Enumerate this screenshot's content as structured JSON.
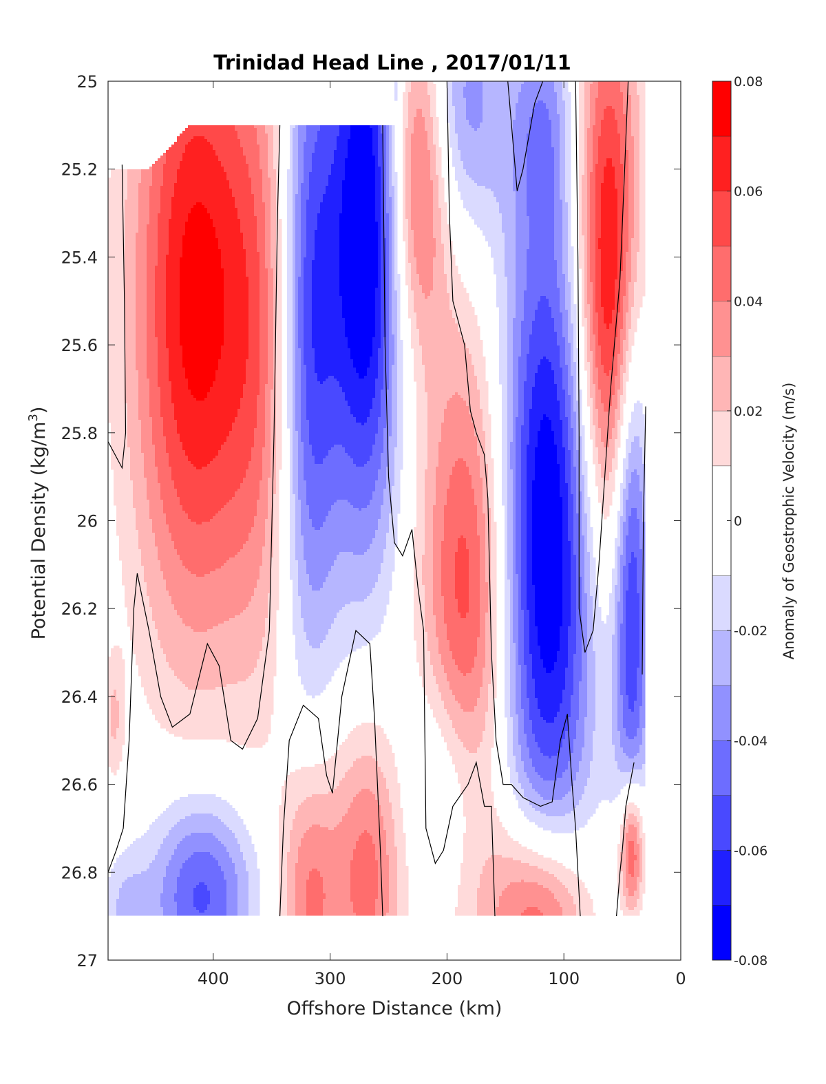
{
  "chart_data": {
    "type": "heatmap",
    "title": "Trinidad Head Line , 2017/01/11",
    "xlabel": "Offshore Distance (km)",
    "ylabel": "Potential Density (kg/m",
    "ylabel_sup": "3",
    "ylabel_end": ")",
    "xlim": [
      490,
      0
    ],
    "ylim": [
      25,
      27
    ],
    "y_reversed": true,
    "x_ticks": [
      {
        "value": 400,
        "label": "400"
      },
      {
        "value": 300,
        "label": "300"
      },
      {
        "value": 200,
        "label": "200"
      },
      {
        "value": 100,
        "label": "100"
      },
      {
        "value": 0,
        "label": "0"
      }
    ],
    "y_ticks": [
      {
        "value": 25,
        "label": "25"
      },
      {
        "value": 25.2,
        "label": "25.2"
      },
      {
        "value": 25.4,
        "label": "25.4"
      },
      {
        "value": 25.6,
        "label": "25.6"
      },
      {
        "value": 25.8,
        "label": "25.8"
      },
      {
        "value": 26,
        "label": "26"
      },
      {
        "value": 26.2,
        "label": "26.2"
      },
      {
        "value": 26.4,
        "label": "26.4"
      },
      {
        "value": 26.6,
        "label": "26.6"
      },
      {
        "value": 26.8,
        "label": "26.8"
      },
      {
        "value": 27,
        "label": "27"
      }
    ],
    "colorbar": {
      "label": "Anomaly of Geostrophic Velocity (m/s)",
      "min": -0.08,
      "max": 0.08,
      "levels": [
        {
          "from": -0.08,
          "to": -0.07,
          "color": "#0000ff"
        },
        {
          "from": -0.07,
          "to": -0.06,
          "color": "#2020ff"
        },
        {
          "from": -0.06,
          "to": -0.05,
          "color": "#4949ff"
        },
        {
          "from": -0.05,
          "to": -0.04,
          "color": "#6d6dff"
        },
        {
          "from": -0.04,
          "to": -0.03,
          "color": "#9191ff"
        },
        {
          "from": -0.03,
          "to": -0.02,
          "color": "#b6b6ff"
        },
        {
          "from": -0.02,
          "to": -0.01,
          "color": "#dadaff"
        },
        {
          "from": -0.01,
          "to": 0.01,
          "color": "#ffffff"
        },
        {
          "from": 0.01,
          "to": 0.02,
          "color": "#ffdada"
        },
        {
          "from": 0.02,
          "to": 0.03,
          "color": "#ffb6b6"
        },
        {
          "from": 0.03,
          "to": 0.04,
          "color": "#ff9191"
        },
        {
          "from": 0.04,
          "to": 0.05,
          "color": "#ff6d6d"
        },
        {
          "from": 0.05,
          "to": 0.06,
          "color": "#ff4949"
        },
        {
          "from": 0.06,
          "to": 0.07,
          "color": "#ff2020"
        },
        {
          "from": 0.07,
          "to": 0.08,
          "color": "#ff0000"
        }
      ],
      "ticks": [
        {
          "value": 0.08,
          "label": "0.08"
        },
        {
          "value": 0.06,
          "label": "0.06"
        },
        {
          "value": 0.04,
          "label": "0.04"
        },
        {
          "value": 0.02,
          "label": "0.02"
        },
        {
          "value": 0,
          "label": "0"
        },
        {
          "value": -0.02,
          "label": "-0.02"
        },
        {
          "value": -0.04,
          "label": "-0.04"
        },
        {
          "value": -0.06,
          "label": "-0.06"
        },
        {
          "value": -0.08,
          "label": "-0.08"
        }
      ]
    },
    "data_extent": {
      "x_min": 30,
      "x_max": 490,
      "y_max": 26.9,
      "top_step": [
        {
          "x_from": 490,
          "x_to": 455,
          "y": 25.2
        },
        {
          "x_from": 420,
          "x_to": 245,
          "y": 25.1
        }
      ]
    },
    "features": [
      {
        "x": 415,
        "y": 25.5,
        "sx": 38,
        "sy": 0.55,
        "value": 0.075
      },
      {
        "x": 358,
        "y": 25.6,
        "sx": 22,
        "sy": 0.55,
        "value": 0.028
      },
      {
        "x": 318,
        "y": 25.55,
        "sx": 18,
        "sy": 0.55,
        "value": -0.058
      },
      {
        "x": 270,
        "y": 25.35,
        "sx": 22,
        "sy": 0.5,
        "value": -0.085
      },
      {
        "x": 225,
        "y": 25.2,
        "sx": 18,
        "sy": 0.28,
        "value": 0.055
      },
      {
        "x": 182,
        "y": 26.2,
        "sx": 28,
        "sy": 0.45,
        "value": 0.06
      },
      {
        "x": 185,
        "y": 25.05,
        "sx": 26,
        "sy": 0.22,
        "value": -0.035
      },
      {
        "x": 115,
        "y": 26.05,
        "sx": 30,
        "sy": 0.55,
        "value": -0.085
      },
      {
        "x": 118,
        "y": 25.1,
        "sx": 18,
        "sy": 0.18,
        "value": -0.025
      },
      {
        "x": 62,
        "y": 25.45,
        "sx": 20,
        "sy": 0.45,
        "value": 0.08
      },
      {
        "x": 42,
        "y": 26.15,
        "sx": 11,
        "sy": 0.45,
        "value": -0.065
      },
      {
        "x": 410,
        "y": 26.85,
        "sx": 32,
        "sy": 0.16,
        "value": -0.055
      },
      {
        "x": 475,
        "y": 26.9,
        "sx": 14,
        "sy": 0.1,
        "value": -0.02
      },
      {
        "x": 318,
        "y": 26.85,
        "sx": 18,
        "sy": 0.22,
        "value": 0.042
      },
      {
        "x": 268,
        "y": 26.8,
        "sx": 22,
        "sy": 0.25,
        "value": 0.045
      },
      {
        "x": 200,
        "y": 26.6,
        "sx": 26,
        "sy": 0.2,
        "value": -0.03
      },
      {
        "x": 120,
        "y": 26.9,
        "sx": 30,
        "sy": 0.16,
        "value": 0.065
      },
      {
        "x": 42,
        "y": 26.75,
        "sx": 8,
        "sy": 0.12,
        "value": 0.07
      },
      {
        "x": 485,
        "y": 26.45,
        "sx": 6,
        "sy": 0.1,
        "value": 0.02
      }
    ],
    "contours": [
      [
        [
          478,
          25.19
        ],
        [
          476,
          25.5
        ],
        [
          475,
          25.8
        ],
        [
          478,
          25.88
        ],
        [
          490,
          25.82
        ]
      ],
      [
        [
          490,
          26.8
        ],
        [
          483,
          26.75
        ],
        [
          477,
          26.7
        ],
        [
          472,
          26.5
        ],
        [
          468,
          26.2
        ],
        [
          465,
          26.12
        ],
        [
          455,
          26.25
        ],
        [
          445,
          26.4
        ],
        [
          435,
          26.47
        ],
        [
          420,
          26.44
        ],
        [
          405,
          26.28
        ],
        [
          395,
          26.33
        ],
        [
          385,
          26.5
        ],
        [
          375,
          26.52
        ],
        [
          362,
          26.45
        ],
        [
          352,
          26.25
        ],
        [
          348,
          25.8
        ],
        [
          345,
          25.3
        ],
        [
          343,
          25.1
        ]
      ],
      [
        [
          343,
          26.9
        ],
        [
          340,
          26.7
        ],
        [
          335,
          26.5
        ],
        [
          323,
          26.42
        ],
        [
          310,
          26.45
        ],
        [
          303,
          26.58
        ],
        [
          298,
          26.62
        ],
        [
          290,
          26.4
        ],
        [
          278,
          26.25
        ],
        [
          266,
          26.28
        ],
        [
          262,
          26.45
        ],
        [
          257,
          26.75
        ],
        [
          255,
          26.9
        ]
      ],
      [
        [
          255,
          25.1
        ],
        [
          253,
          25.6
        ],
        [
          250,
          25.9
        ],
        [
          245,
          26.05
        ],
        [
          238,
          26.08
        ],
        [
          230,
          26.02
        ],
        [
          225,
          26.15
        ],
        [
          220,
          26.25
        ],
        [
          218,
          26.7
        ],
        [
          210,
          26.78
        ],
        [
          203,
          26.75
        ],
        [
          195,
          26.65
        ],
        [
          182,
          26.6
        ],
        [
          175,
          26.55
        ],
        [
          168,
          26.65
        ],
        [
          162,
          26.65
        ],
        [
          159,
          26.9
        ]
      ],
      [
        [
          200,
          25
        ],
        [
          198,
          25.3
        ],
        [
          195,
          25.5
        ],
        [
          185,
          25.6
        ],
        [
          180,
          25.75
        ],
        [
          175,
          25.8
        ],
        [
          168,
          25.85
        ],
        [
          165,
          25.95
        ],
        [
          162,
          26.3
        ],
        [
          158,
          26.5
        ],
        [
          152,
          26.6
        ],
        [
          145,
          26.6
        ],
        [
          135,
          26.63
        ],
        [
          120,
          26.65
        ],
        [
          110,
          26.64
        ],
        [
          103,
          26.5
        ],
        [
          97,
          26.44
        ],
        [
          93,
          26.6
        ],
        [
          90,
          26.7
        ],
        [
          86,
          26.9
        ]
      ],
      [
        [
          148,
          25
        ],
        [
          140,
          25.25
        ],
        [
          135,
          25.2
        ],
        [
          125,
          25.05
        ],
        [
          118,
          25
        ]
      ],
      [
        [
          90,
          25
        ],
        [
          88,
          25.4
        ],
        [
          87,
          25.8
        ],
        [
          87,
          26.2
        ],
        [
          82,
          26.3
        ],
        [
          75,
          26.25
        ],
        [
          70,
          26.1
        ],
        [
          65,
          25.9
        ],
        [
          60,
          25.7
        ],
        [
          52,
          25.45
        ],
        [
          48,
          25.2
        ],
        [
          45,
          25
        ]
      ],
      [
        [
          55,
          26.9
        ],
        [
          52,
          26.8
        ],
        [
          50,
          26.75
        ],
        [
          47,
          26.65
        ],
        [
          40,
          26.55
        ]
      ],
      [
        [
          30,
          25.74
        ],
        [
          32,
          26.0
        ],
        [
          33,
          26.35
        ]
      ]
    ]
  }
}
